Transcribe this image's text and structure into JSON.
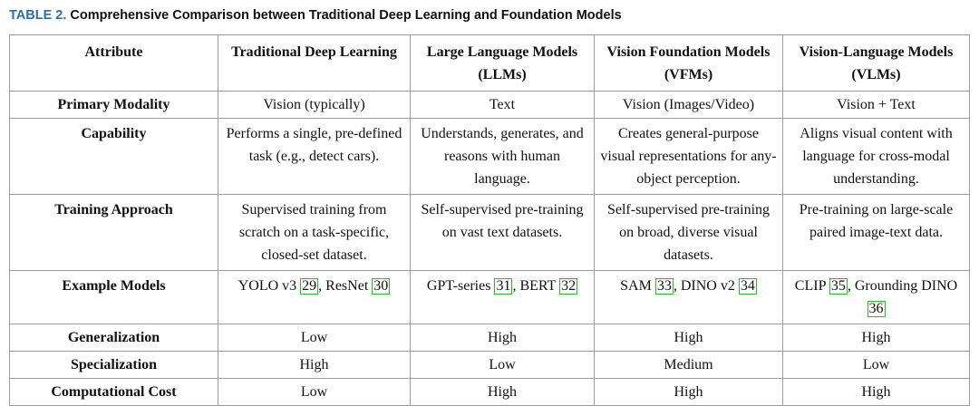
{
  "caption": {
    "label": "TABLE 2.",
    "text": "Comprehensive Comparison between Traditional Deep Learning and Foundation Models"
  },
  "table": {
    "headers": [
      "Attribute",
      "Traditional Deep Learning",
      "Large Language Models (LLMs)",
      "Vision Foundation Models (VFMs)",
      "Vision-Language Models (VLMs)"
    ],
    "rows": [
      {
        "attribute": "Primary Modality",
        "values": [
          "Vision (typically)",
          "Text",
          "Vision (Images/Video)",
          "Vision + Text"
        ]
      },
      {
        "attribute": "Capability",
        "values": [
          "Performs a single, pre-defined task (e.g., detect cars).",
          "Understands, generates, and reasons with human language.",
          "Creates general-purpose visual representations for any-object perception.",
          "Aligns visual content with language for cross-modal understanding."
        ]
      },
      {
        "attribute": "Training Approach",
        "values": [
          "Supervised training from scratch on a task-specific, closed-set dataset.",
          "Self-supervised pre-training on vast text datasets.",
          "Self-supervised pre-training on broad, diverse visual datasets.",
          "Pre-training on large-scale paired image-text data."
        ]
      },
      {
        "attribute": "Example Models",
        "values": [
          {
            "parts": [
              "YOLO v3 ",
              "29",
              ", ResNet ",
              "30",
              ""
            ]
          },
          {
            "parts": [
              "GPT-series ",
              "31",
              ", BERT ",
              "32",
              ""
            ]
          },
          {
            "parts": [
              "SAM ",
              "33",
              ", DINO v2 ",
              "34",
              ""
            ]
          },
          {
            "parts": [
              "CLIP ",
              "35",
              ", Grounding DINO ",
              "36",
              ""
            ]
          }
        ]
      },
      {
        "attribute": "Generalization",
        "values": [
          "Low",
          "High",
          "High",
          "High"
        ]
      },
      {
        "attribute": "Specialization",
        "values": [
          "High",
          "Low",
          "Medium",
          "Low"
        ]
      },
      {
        "attribute": "Computational Cost",
        "values": [
          "Low",
          "High",
          "High",
          "High"
        ]
      }
    ]
  }
}
